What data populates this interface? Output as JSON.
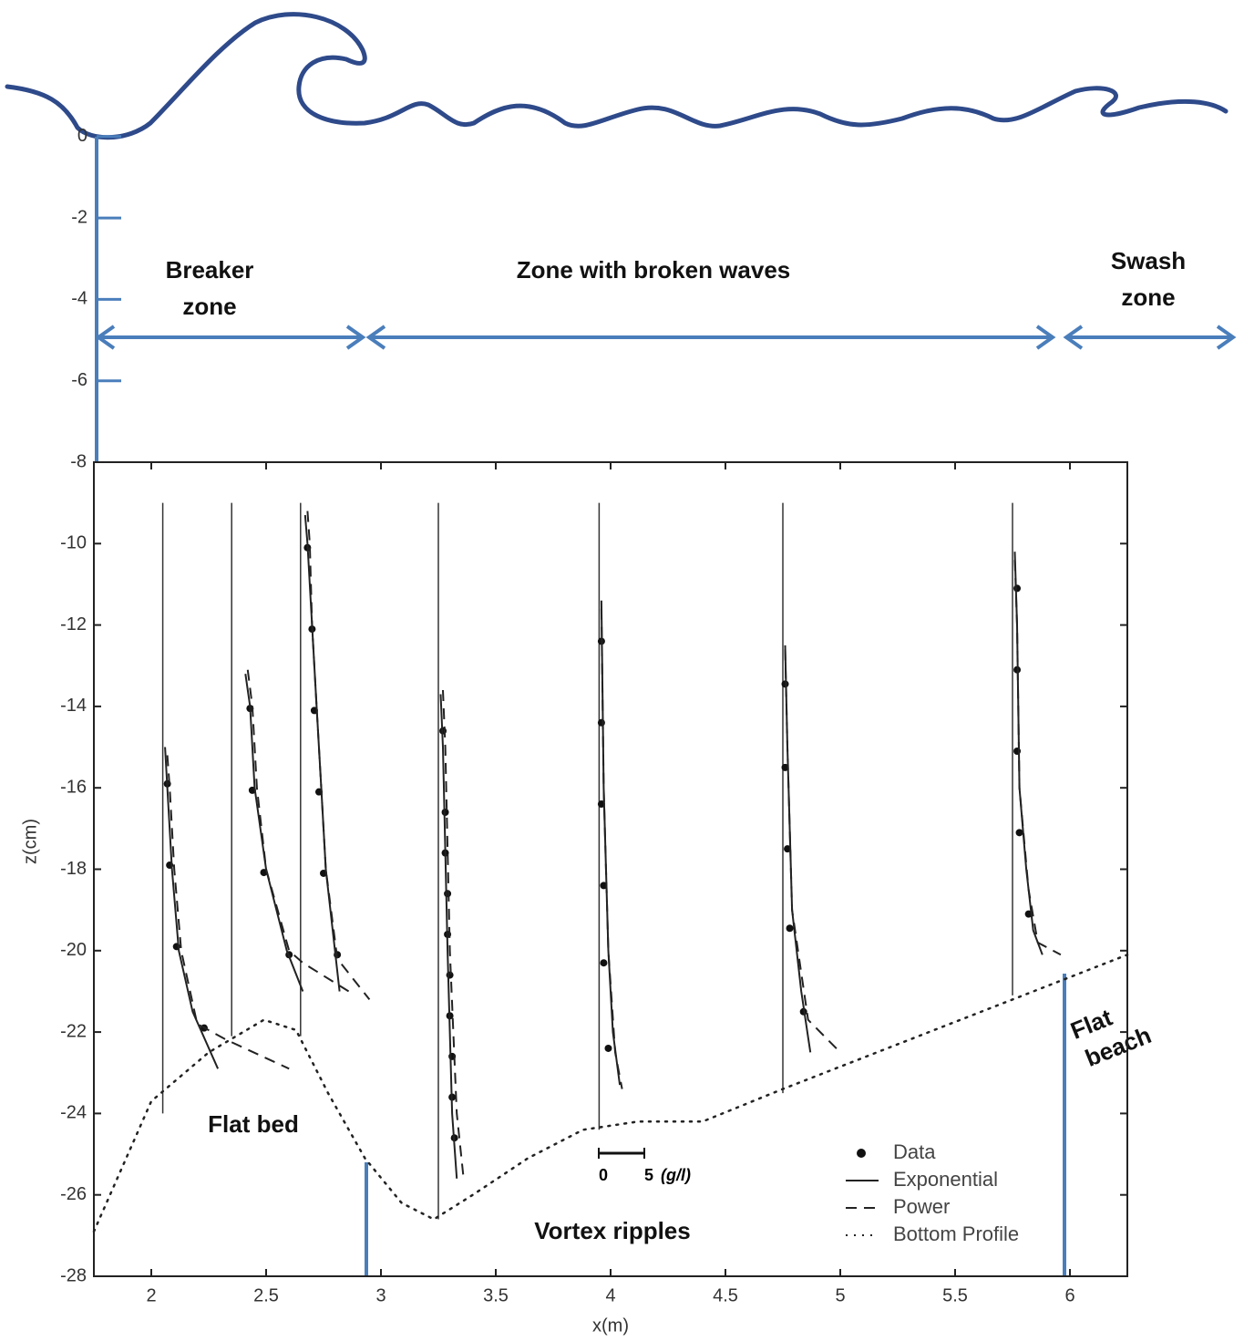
{
  "chart_data": {
    "type": "profiles",
    "x_label": "x(m)",
    "y_label": "z(cm)",
    "xlim": [
      1.75,
      6.25
    ],
    "ylim": [
      -28,
      -8
    ],
    "xticks": [
      2,
      2.5,
      3,
      3.5,
      4,
      4.5,
      5,
      5.5,
      6
    ],
    "yticks": [
      -8,
      -10,
      -12,
      -14,
      -16,
      -18,
      -20,
      -22,
      -24,
      -26,
      -28
    ],
    "upper_yticks": [
      0,
      -2,
      -4,
      -6
    ],
    "profile_lines": {
      "x": [
        2.05,
        2.35,
        2.65,
        3.25,
        3.95,
        4.75,
        5.75
      ],
      "z_top": [
        -9,
        -9,
        -9,
        -9,
        -9,
        -9,
        -9
      ],
      "z_bottom": [
        -24,
        -22.1,
        -22.1,
        -26.6,
        -24.4,
        -23.5,
        -21.1
      ]
    },
    "series": [
      {
        "name": "Data",
        "style": "points",
        "color": "#111111",
        "x": [
          2.07,
          2.08,
          2.11,
          2.23,
          2.43,
          2.44,
          2.49,
          2.6,
          2.68,
          2.7,
          2.71,
          2.73,
          2.75,
          2.81,
          3.27,
          3.28,
          3.28,
          3.29,
          3.29,
          3.3,
          3.3,
          3.31,
          3.31,
          3.32,
          3.96,
          3.96,
          3.96,
          3.97,
          3.97,
          3.99,
          4.76,
          4.76,
          4.77,
          4.78,
          4.84,
          5.77,
          5.77,
          5.77,
          5.78,
          5.82
        ],
        "values": [
          -15.9,
          -17.9,
          -19.9,
          -21.9,
          -14.05,
          -16.06,
          -18.08,
          -20.1,
          -10.1,
          -12.1,
          -14.1,
          -16.1,
          -18.1,
          -20.1,
          -14.6,
          -16.6,
          -17.6,
          -18.6,
          -19.6,
          -20.6,
          -21.6,
          -22.6,
          -23.6,
          -24.6,
          -12.4,
          -14.4,
          -16.4,
          -18.4,
          -20.3,
          -22.4,
          -13.45,
          -15.5,
          -17.5,
          -19.45,
          -21.5,
          -11.1,
          -13.1,
          -15.1,
          -17.1,
          -19.1
        ]
      },
      {
        "name": "Exponential",
        "style": "solid",
        "color": "#222222",
        "x": [
          2.06,
          2.07,
          2.09,
          2.12,
          2.18,
          2.29,
          null,
          2.41,
          2.43,
          2.45,
          2.5,
          2.59,
          2.66,
          null,
          2.67,
          2.68,
          2.7,
          2.72,
          2.74,
          2.76,
          2.82,
          null,
          3.26,
          3.27,
          3.29,
          3.31,
          3.33,
          null,
          3.96,
          3.97,
          3.99,
          4.01,
          4.04,
          null,
          4.76,
          4.77,
          4.79,
          4.83,
          4.87,
          null,
          5.76,
          5.77,
          5.78,
          5.81,
          5.84,
          5.88
        ],
        "values": [
          -15,
          -16,
          -18,
          -20,
          -21.5,
          -22.9,
          null,
          -13.2,
          -14,
          -16,
          -18,
          -20,
          -21,
          null,
          -9.3,
          -10,
          -12,
          -14,
          -16,
          -18,
          -21,
          null,
          -13.7,
          -15,
          -20,
          -24,
          -25.6,
          null,
          -11.4,
          -16,
          -20,
          -22,
          -23.3,
          null,
          -12.5,
          -15,
          -19,
          -21,
          -22.5,
          null,
          -10.2,
          -12,
          -16,
          -18,
          -19.5,
          -20.1
        ]
      },
      {
        "name": "Power",
        "style": "dashed",
        "color": "#222222",
        "x": [
          2.07,
          2.08,
          2.1,
          2.13,
          2.2,
          2.33,
          2.6,
          null,
          2.42,
          2.44,
          2.46,
          2.5,
          2.6,
          2.66,
          2.86,
          null,
          2.68,
          2.69,
          2.7,
          2.72,
          2.74,
          2.76,
          2.81,
          2.95,
          null,
          3.27,
          3.28,
          3.3,
          3.33,
          3.36,
          null,
          3.96,
          3.97,
          3.99,
          4.02,
          4.05,
          null,
          4.76,
          4.77,
          4.79,
          4.86,
          5.0,
          null,
          5.76,
          5.77,
          5.78,
          5.82,
          5.86,
          5.96
        ],
        "values": [
          -15.2,
          -16,
          -18,
          -20,
          -21.8,
          -22.2,
          -22.9,
          null,
          -13.1,
          -14,
          -16,
          -18,
          -20,
          -20.3,
          -21,
          null,
          -9.2,
          -10,
          -12,
          -14,
          -16,
          -18,
          -20.2,
          -21.2,
          null,
          -13.6,
          -15,
          -20,
          -24,
          -25.6,
          null,
          -11.6,
          -16,
          -20,
          -22.5,
          -23.4,
          null,
          -12.6,
          -15,
          -19,
          -21.7,
          -22.5,
          null,
          -10.4,
          -12,
          -16,
          -18.5,
          -19.8,
          -20.1
        ]
      },
      {
        "name": "Bottom Profile",
        "style": "dotted",
        "color": "#222222",
        "x": [
          1.75,
          2.0,
          2.25,
          2.49,
          2.63,
          2.77,
          2.93,
          3.09,
          3.23,
          3.4,
          3.64,
          3.88,
          4.12,
          4.4,
          4.75,
          5.75,
          6.25
        ],
        "values": [
          -26.9,
          -23.7,
          -22.5,
          -21.7,
          -21.95,
          -23.5,
          -25.1,
          -26.2,
          -26.6,
          -26,
          -25.1,
          -24.4,
          -24.2,
          -24.2,
          -23.4,
          -21.2,
          -20.1
        ]
      }
    ],
    "scale_bar": {
      "ticks": [
        0,
        5
      ],
      "unit": "(g/l)"
    },
    "annotations": {
      "breaker_zone": [
        "Breaker",
        "zone"
      ],
      "broken_waves": [
        "Zone with broken waves"
      ],
      "swash_zone": [
        "Swash",
        "zone"
      ],
      "flat_bed": [
        "Flat bed"
      ],
      "vortex_ripples": [
        "Vortex ripples"
      ],
      "flat_beach": [
        "Flat",
        "beach"
      ]
    }
  }
}
